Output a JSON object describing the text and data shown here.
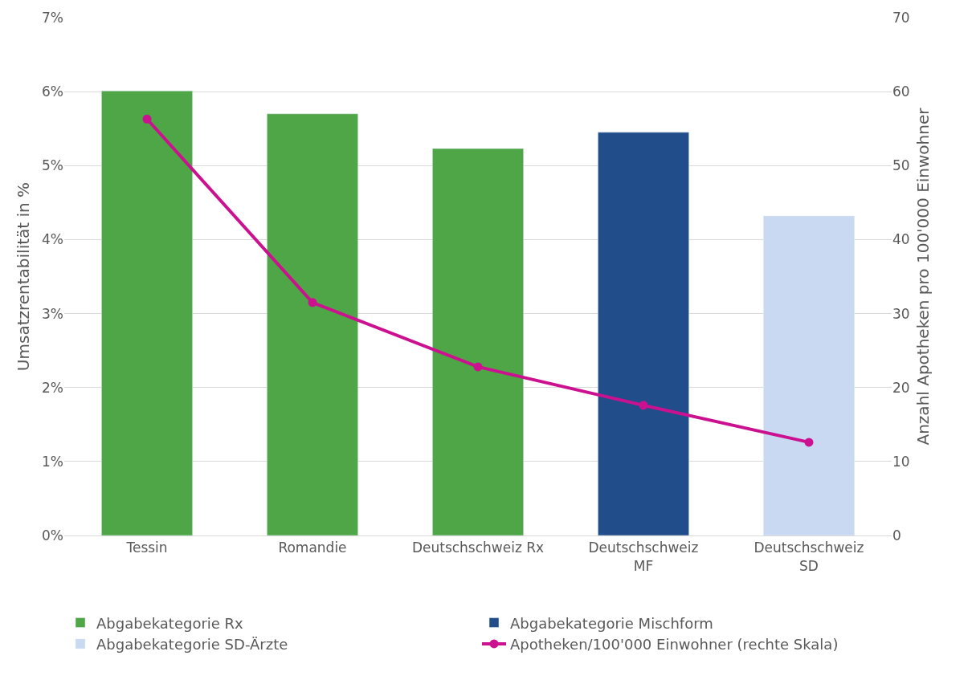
{
  "chart_data": {
    "type": "bar",
    "stacked": true,
    "ylabel": "Umsatzrentabilität in %",
    "y2label": "Anzahl Apotheken pro 100'000 Einwohner",
    "categories": [
      "Tessin",
      "Romandie",
      "Deutschschweiz Rx",
      "Deutschschweiz\nMF",
      "Deutschschweiz\nSD"
    ],
    "series": [
      {
        "name": "Abgabekategorie Rx",
        "color": "#4ea646",
        "values": [
          6.01,
          5.7,
          5.23,
          null,
          null
        ]
      },
      {
        "name": "Abgabekategorie Mischform",
        "color": "#214e8b",
        "values": [
          null,
          null,
          null,
          5.45,
          null
        ]
      },
      {
        "name": "Abgabekategorie SD-Ärzte",
        "color": "#c8d9f1",
        "values": [
          null,
          null,
          null,
          null,
          4.32
        ]
      },
      {
        "name": "Apotheken/100'000 Einwohner (rechte Skala)",
        "type": "line",
        "axis": "y2",
        "color": "#cc1190",
        "marker": "circle",
        "values": [
          56.3,
          31.5,
          22.8,
          17.6,
          12.6
        ]
      }
    ],
    "ylim": [
      0,
      7
    ],
    "yticks": [
      {
        "value": 0,
        "label": "0%"
      },
      {
        "value": 1,
        "label": "1%"
      },
      {
        "value": 2,
        "label": "2%"
      },
      {
        "value": 3,
        "label": "3%"
      },
      {
        "value": 4,
        "label": "4%"
      },
      {
        "value": 5,
        "label": "5%"
      },
      {
        "value": 6,
        "label": "6%"
      },
      {
        "value": 7,
        "label": "7%"
      }
    ],
    "y2lim": [
      0,
      70
    ],
    "y2ticks": [
      0,
      10,
      20,
      30,
      40,
      50,
      60,
      70
    ],
    "grid": "y",
    "legend": "bottom"
  }
}
